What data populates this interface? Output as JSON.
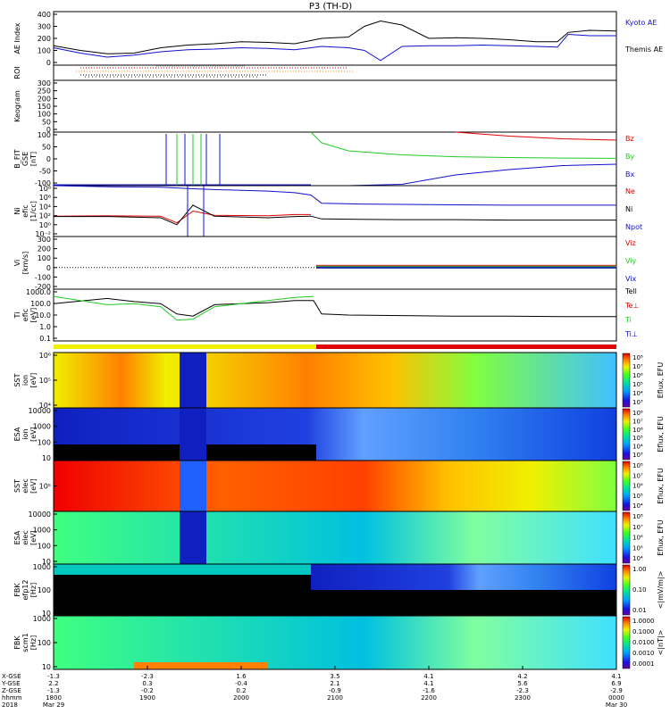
{
  "title": "P3 (TH-D)",
  "colors": {
    "red": "#e00000",
    "green": "#22cc22",
    "blue": "#1010d0",
    "black": "#000000",
    "orange": "#ff8c00",
    "cyan": "#00c8e0",
    "yellow": "#f0f000"
  },
  "chart_data": [
    {
      "type": "line",
      "panel": "ae",
      "ylabel": "AE Index",
      "ylim": [
        0,
        400
      ],
      "yticks": [
        "400",
        "300",
        "200",
        "100",
        "0"
      ],
      "x": [
        -1.5,
        -1,
        -0.5,
        0,
        0.5,
        1,
        1.5,
        2,
        2.5,
        3,
        3.5,
        4,
        4.3,
        4.6,
        5,
        5.5,
        6,
        6.5,
        7,
        7.5,
        7.9,
        8.1,
        8.5,
        9
      ],
      "series": [
        {
          "name": "Kyoto AE",
          "color": "#1010d0",
          "values": [
            130,
            90,
            60,
            75,
            100,
            115,
            120,
            130,
            125,
            115,
            140,
            130,
            110,
            35,
            140,
            145,
            145,
            150,
            145,
            140,
            135,
            230,
            220,
            220
          ]
        },
        {
          "name": "Themis AE",
          "color": "#000000",
          "values": [
            145,
            110,
            85,
            90,
            130,
            150,
            160,
            175,
            170,
            160,
            200,
            210,
            290,
            330,
            300,
            200,
            205,
            200,
            190,
            175,
            175,
            245,
            260,
            255
          ]
        }
      ]
    },
    {
      "type": "table",
      "panel": "roi",
      "ylabel": "ROI"
    },
    {
      "type": "line",
      "panel": "keogram",
      "ylabel": "Keogram",
      "ylim": [
        0,
        300
      ],
      "yticks": [
        "300",
        "250",
        "200",
        "150",
        "100",
        "50",
        "0"
      ]
    },
    {
      "type": "line",
      "panel": "bfit",
      "ylabel": [
        "B_FIT",
        "GSE",
        "[nT]"
      ],
      "ylim": [
        -100,
        100
      ],
      "yticks": [
        "100",
        "50",
        "0",
        "-50",
        "-100"
      ],
      "x": [
        3.3,
        3.5,
        4,
        5,
        6,
        7,
        8,
        9
      ],
      "series": [
        {
          "name": "Bz",
          "color": "#e00000",
          "values": [
            null,
            null,
            null,
            null,
            100,
            85,
            75,
            70
          ]
        },
        {
          "name": "By",
          "color": "#22cc22",
          "values": [
            100,
            60,
            30,
            15,
            8,
            5,
            3,
            2
          ]
        },
        {
          "name": "Bx",
          "color": "#1010d0",
          "values": [
            -100,
            -100,
            -100,
            -95,
            -60,
            -40,
            -25,
            -20
          ]
        }
      ]
    },
    {
      "type": "line",
      "panel": "density",
      "ylabel": [
        "Ni",
        "efic",
        "[1/cc]"
      ],
      "ylim": [
        -5,
        8
      ],
      "yticks": [
        "10⁸",
        "10⁶",
        "10⁴",
        "10²",
        "10⁰",
        "10⁻²"
      ],
      "x": [
        -1.5,
        -0.5,
        0.5,
        0.8,
        1.1,
        1.5,
        2.5,
        3.0,
        3.3,
        3.5,
        4.2,
        5,
        6,
        7,
        8,
        9
      ],
      "series": [
        {
          "name": "Ne",
          "color": "#e00000",
          "values": [
            0.2,
            0.3,
            0.2,
            -1.5,
            1.5,
            0.4,
            0.3,
            0.6,
            0.6,
            null,
            null,
            null,
            null,
            null,
            null,
            null
          ]
        },
        {
          "name": "Ni",
          "color": "#000000",
          "values": [
            0.1,
            0.1,
            -0.2,
            -2.0,
            3.0,
            0.2,
            -0.2,
            0.1,
            0.2,
            -0.5,
            -0.6,
            -0.7,
            -0.7,
            -0.8,
            -0.8,
            -0.8
          ]
        },
        {
          "name": "Npot",
          "color": "#1010d0",
          "values": [
            8.0,
            7.7,
            7.6,
            7.4,
            7.2,
            7.0,
            6.6,
            6.2,
            5.6,
            3.5,
            3.3,
            3.2,
            3.1,
            3.0,
            3.0,
            3.0
          ]
        }
      ]
    },
    {
      "type": "line",
      "panel": "velocity",
      "ylabel": [
        "Vi",
        "[km/s]"
      ],
      "ylim": [
        -200,
        300
      ],
      "yticks": [
        "300",
        "200",
        "100",
        "0",
        "-100",
        "-200"
      ],
      "series": [
        {
          "name": "Viz",
          "color": "#e00000"
        },
        {
          "name": "Viy",
          "color": "#22cc22"
        },
        {
          "name": "Vix",
          "color": "#1010d0"
        }
      ]
    },
    {
      "type": "line",
      "panel": "temperature",
      "ylabel": [
        "Ti",
        "efic",
        "[eV]"
      ],
      "ylim": [
        -1,
        4
      ],
      "yticks": [
        "1000.0",
        "100.0",
        "10.0",
        "1.0",
        "0.1"
      ],
      "x": [
        -1.5,
        -0.5,
        0,
        0.5,
        0.8,
        1.1,
        1.5,
        2.0,
        2.5,
        3.0,
        3.35,
        3.5,
        4,
        5,
        6,
        7,
        8,
        9
      ],
      "series": [
        {
          "name": "Tell",
          "color": "#000000",
          "values": [
            2.6,
            3.1,
            2.8,
            2.6,
            1.6,
            1.4,
            2.5,
            2.6,
            2.7,
            2.9,
            2.9,
            1.6,
            1.5,
            1.45,
            1.4,
            1.4,
            1.35,
            1.35
          ]
        },
        {
          "name": "Te⊥",
          "color": "#e00000"
        },
        {
          "name": "Ti",
          "color": "#22cc22",
          "values": [
            3.3,
            2.5,
            2.6,
            2.3,
            1.0,
            1.1,
            2.3,
            2.6,
            2.9,
            3.2,
            3.3,
            null,
            null,
            null,
            null,
            null,
            null,
            null
          ]
        },
        {
          "name": "Ti⊥",
          "color": "#1010d0"
        }
      ]
    },
    {
      "type": "heatmap",
      "panel": "sst1",
      "ylabel": [
        "SST",
        "ion",
        "[eV]"
      ],
      "yticks": [
        "10⁶",
        "10⁵",
        "10⁴"
      ],
      "colorbar": {
        "label": "Eflux, EFU",
        "ticks": [
          "10⁸",
          "10⁷",
          "10⁶",
          "10⁵",
          "10⁴",
          "10³"
        ]
      }
    },
    {
      "type": "heatmap",
      "panel": "esa1",
      "ylabel": [
        "ESA",
        "ion",
        "[eV]"
      ],
      "yticks": [
        "10000",
        "1000",
        "100",
        "10"
      ],
      "colorbar": {
        "label": "Eflux, EFU",
        "ticks": [
          "10⁸",
          "10⁷",
          "10⁶",
          "10⁵",
          "10⁴",
          "10³"
        ]
      }
    },
    {
      "type": "heatmap",
      "panel": "sst2",
      "ylabel": [
        "SST",
        "elec",
        "[eV]"
      ],
      "yticks": [
        "10⁵"
      ],
      "colorbar": {
        "label": "Eflux, EFU",
        "ticks": [
          "10⁸",
          "10⁷",
          "10⁶",
          "10⁵",
          "10⁴"
        ]
      }
    },
    {
      "type": "heatmap",
      "panel": "esa2",
      "ylabel": [
        "ESA",
        "elec",
        "[eV]"
      ],
      "yticks": [
        "10000",
        "1000",
        "100",
        "10"
      ],
      "colorbar": {
        "label": "Eflux, EFU",
        "ticks": [
          "10⁸",
          "10⁷",
          "10⁶",
          "10⁵",
          "10⁴"
        ]
      }
    },
    {
      "type": "heatmap",
      "panel": "fbk1",
      "ylabel": [
        "FBK",
        "efp12",
        "[Hz]"
      ],
      "yticks": [
        "1000",
        "100",
        "10"
      ],
      "colorbar": {
        "label": "<|mV/m|>",
        "ticks": [
          "1.00",
          "0.10",
          "0.01"
        ]
      }
    },
    {
      "type": "heatmap",
      "panel": "fbk2",
      "ylabel": [
        "FBK",
        "scm1",
        "[Hz]"
      ],
      "yticks": [
        "1000",
        "100",
        "10"
      ],
      "colorbar": {
        "label": "<|nT|>",
        "ticks": [
          "1.0000",
          "0.1000",
          "0.0100",
          "0.0010",
          "0.0001"
        ]
      }
    }
  ],
  "bottom_axis": {
    "row_labels": [
      "X-GSE",
      "Y-GSE",
      "Z-GSE",
      "hhmm",
      "2018"
    ],
    "columns": [
      {
        "vals": [
          "-1.3",
          "2.2",
          "-1.3"
        ],
        "time": "1800",
        "date": "Mar 29"
      },
      {
        "vals": [
          "-2.3",
          "0.3",
          "-0.2"
        ],
        "time": "1900",
        "date": ""
      },
      {
        "vals": [
          "1.6",
          "-0.4",
          "0.2"
        ],
        "time": "2000",
        "date": ""
      },
      {
        "vals": [
          "3.5",
          "2.1",
          "-0.9"
        ],
        "time": "2100",
        "date": ""
      },
      {
        "vals": [
          "4.1",
          "4.1",
          "-1.6"
        ],
        "time": "2200",
        "date": ""
      },
      {
        "vals": [
          "4.2",
          "5.6",
          "-2.3"
        ],
        "time": "2300",
        "date": ""
      },
      {
        "vals": [
          "4.1",
          "6.9",
          "-2.9"
        ],
        "time": "0000",
        "date": "Mar 30"
      }
    ]
  }
}
